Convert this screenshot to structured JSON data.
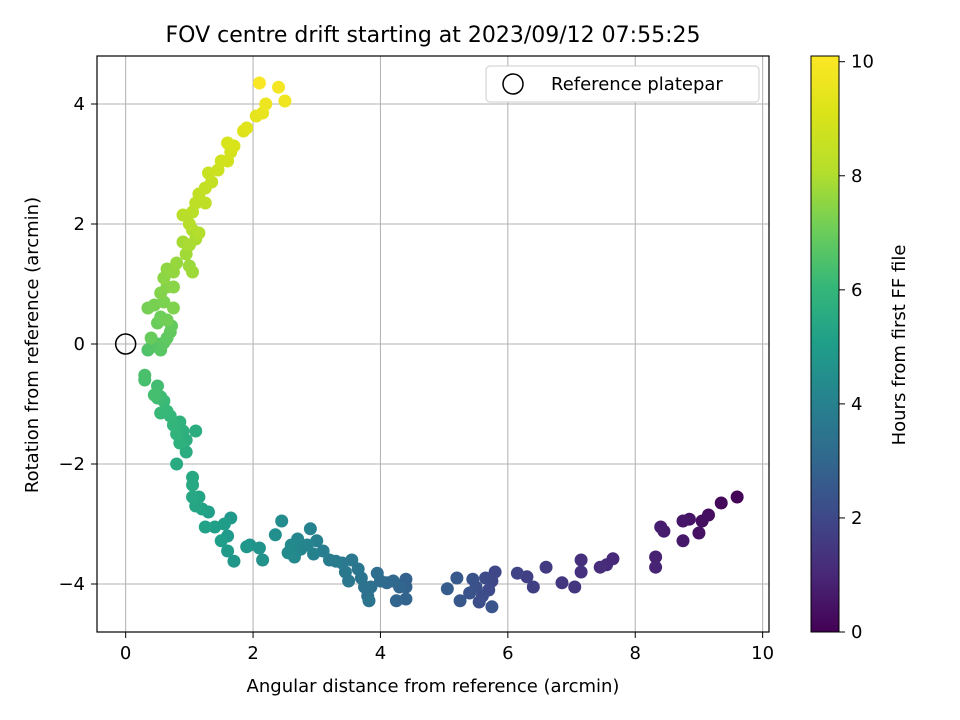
{
  "chart_data": {
    "type": "scatter",
    "title": "FOV centre drift starting at 2023/09/12 07:55:25",
    "xlabel": "Angular distance from reference (arcmin)",
    "ylabel": "Rotation from reference (arcmin)",
    "xlim": [
      -0.45,
      10.1
    ],
    "ylim": [
      -4.8,
      4.8
    ],
    "x_ticks": [
      "0",
      "2",
      "4",
      "6",
      "8",
      "10"
    ],
    "y_ticks": [
      "−4",
      "−2",
      "0",
      "2",
      "4"
    ],
    "x_tick_values": [
      0,
      2,
      4,
      6,
      8,
      10
    ],
    "y_tick_values": [
      -4,
      -2,
      0,
      2,
      4
    ],
    "grid": true,
    "legend": {
      "placement": "top-right",
      "entries": [
        {
          "label": "Reference platepar",
          "marker": "open-circle"
        }
      ]
    },
    "reference_point": {
      "x": 0,
      "y": 0
    },
    "colorbar": {
      "label": "Hours from first FF file",
      "colormap": "viridis",
      "range": [
        0,
        10.1
      ],
      "ticks": [
        "0",
        "2",
        "4",
        "6",
        "8",
        "10"
      ],
      "tick_values": [
        0,
        2,
        4,
        6,
        8,
        10
      ]
    },
    "points": [
      {
        "x": 9.6,
        "y": -2.55,
        "c": 0.1
      },
      {
        "x": 9.35,
        "y": -2.65,
        "c": 0.2
      },
      {
        "x": 9.15,
        "y": -2.85,
        "c": 0.3
      },
      {
        "x": 9.05,
        "y": -2.95,
        "c": 0.35
      },
      {
        "x": 9.0,
        "y": -3.15,
        "c": 0.45
      },
      {
        "x": 8.85,
        "y": -2.92,
        "c": 0.5
      },
      {
        "x": 8.75,
        "y": -2.95,
        "c": 0.55
      },
      {
        "x": 8.75,
        "y": -3.28,
        "c": 0.6
      },
      {
        "x": 8.45,
        "y": -3.12,
        "c": 0.7
      },
      {
        "x": 8.4,
        "y": -3.05,
        "c": 0.75
      },
      {
        "x": 8.32,
        "y": -3.55,
        "c": 0.85
      },
      {
        "x": 8.32,
        "y": -3.72,
        "c": 0.9
      },
      {
        "x": 7.65,
        "y": -3.58,
        "c": 1.05
      },
      {
        "x": 7.55,
        "y": -3.68,
        "c": 1.1
      },
      {
        "x": 7.45,
        "y": -3.72,
        "c": 1.15
      },
      {
        "x": 7.15,
        "y": -3.6,
        "c": 1.25
      },
      {
        "x": 7.15,
        "y": -3.8,
        "c": 1.3
      },
      {
        "x": 7.05,
        "y": -4.05,
        "c": 1.4
      },
      {
        "x": 6.85,
        "y": -3.98,
        "c": 1.5
      },
      {
        "x": 6.6,
        "y": -3.72,
        "c": 1.6
      },
      {
        "x": 6.4,
        "y": -4.05,
        "c": 1.7
      },
      {
        "x": 6.3,
        "y": -3.88,
        "c": 1.75
      },
      {
        "x": 6.15,
        "y": -3.82,
        "c": 1.85
      },
      {
        "x": 5.8,
        "y": -3.8,
        "c": 1.95
      },
      {
        "x": 5.75,
        "y": -3.95,
        "c": 2.0
      },
      {
        "x": 5.7,
        "y": -4.1,
        "c": 2.05
      },
      {
        "x": 5.65,
        "y": -3.9,
        "c": 2.1
      },
      {
        "x": 5.6,
        "y": -4.2,
        "c": 2.15
      },
      {
        "x": 5.55,
        "y": -4.3,
        "c": 2.2
      },
      {
        "x": 5.5,
        "y": -4.05,
        "c": 2.25
      },
      {
        "x": 5.45,
        "y": -3.92,
        "c": 2.3
      },
      {
        "x": 5.4,
        "y": -4.15,
        "c": 2.35
      },
      {
        "x": 5.75,
        "y": -4.38,
        "c": 2.4
      },
      {
        "x": 5.25,
        "y": -4.28,
        "c": 2.5
      },
      {
        "x": 5.2,
        "y": -3.9,
        "c": 2.55
      },
      {
        "x": 5.05,
        "y": -4.08,
        "c": 2.65
      },
      {
        "x": 4.4,
        "y": -3.92,
        "c": 2.8
      },
      {
        "x": 4.4,
        "y": -4.05,
        "c": 2.85
      },
      {
        "x": 4.4,
        "y": -4.25,
        "c": 2.9
      },
      {
        "x": 4.25,
        "y": -4.28,
        "c": 2.95
      },
      {
        "x": 4.3,
        "y": -4.05,
        "c": 3.0
      },
      {
        "x": 4.2,
        "y": -3.95,
        "c": 3.05
      },
      {
        "x": 4.1,
        "y": -3.98,
        "c": 3.1
      },
      {
        "x": 4.0,
        "y": -3.95,
        "c": 3.2
      },
      {
        "x": 3.95,
        "y": -3.82,
        "c": 3.25
      },
      {
        "x": 3.85,
        "y": -4.05,
        "c": 3.3
      },
      {
        "x": 3.8,
        "y": -4.2,
        "c": 3.35
      },
      {
        "x": 3.75,
        "y": -4.05,
        "c": 3.4
      },
      {
        "x": 3.82,
        "y": -4.28,
        "c": 3.45
      },
      {
        "x": 3.7,
        "y": -3.9,
        "c": 3.5
      },
      {
        "x": 3.65,
        "y": -3.75,
        "c": 3.55
      },
      {
        "x": 3.55,
        "y": -3.6,
        "c": 3.6
      },
      {
        "x": 3.5,
        "y": -3.95,
        "c": 3.62
      },
      {
        "x": 3.45,
        "y": -3.8,
        "c": 3.65
      },
      {
        "x": 3.4,
        "y": -3.65,
        "c": 3.7
      },
      {
        "x": 3.3,
        "y": -3.62,
        "c": 3.75
      },
      {
        "x": 3.2,
        "y": -3.6,
        "c": 3.8
      },
      {
        "x": 3.1,
        "y": -3.45,
        "c": 3.9
      },
      {
        "x": 3.0,
        "y": -3.28,
        "c": 3.95
      },
      {
        "x": 2.95,
        "y": -3.5,
        "c": 4.0
      },
      {
        "x": 2.9,
        "y": -3.08,
        "c": 4.05
      },
      {
        "x": 2.85,
        "y": -3.35,
        "c": 4.1
      },
      {
        "x": 2.75,
        "y": -3.42,
        "c": 4.15
      },
      {
        "x": 2.7,
        "y": -3.25,
        "c": 4.2
      },
      {
        "x": 2.65,
        "y": -3.55,
        "c": 4.25
      },
      {
        "x": 2.6,
        "y": -3.35,
        "c": 4.3
      },
      {
        "x": 2.55,
        "y": -3.48,
        "c": 4.35
      },
      {
        "x": 2.45,
        "y": -2.95,
        "c": 4.4
      },
      {
        "x": 2.35,
        "y": -3.18,
        "c": 4.5
      },
      {
        "x": 2.15,
        "y": -3.6,
        "c": 4.6
      },
      {
        "x": 2.1,
        "y": -3.4,
        "c": 4.65
      },
      {
        "x": 1.95,
        "y": -3.35,
        "c": 4.7
      },
      {
        "x": 1.9,
        "y": -3.38,
        "c": 4.75
      },
      {
        "x": 1.7,
        "y": -3.62,
        "c": 4.8
      },
      {
        "x": 1.65,
        "y": -2.9,
        "c": 4.85
      },
      {
        "x": 1.6,
        "y": -3.2,
        "c": 4.9
      },
      {
        "x": 1.6,
        "y": -3.45,
        "c": 4.95
      },
      {
        "x": 1.55,
        "y": -3.0,
        "c": 5.0
      },
      {
        "x": 1.5,
        "y": -3.28,
        "c": 5.05
      },
      {
        "x": 1.4,
        "y": -3.05,
        "c": 5.1
      },
      {
        "x": 1.3,
        "y": -2.8,
        "c": 5.15
      },
      {
        "x": 1.25,
        "y": -3.05,
        "c": 5.2
      },
      {
        "x": 1.2,
        "y": -2.75,
        "c": 5.25
      },
      {
        "x": 1.15,
        "y": -2.55,
        "c": 5.3
      },
      {
        "x": 1.1,
        "y": -2.7,
        "c": 5.35
      },
      {
        "x": 1.05,
        "y": -2.55,
        "c": 5.4
      },
      {
        "x": 1.05,
        "y": -2.35,
        "c": 5.45
      },
      {
        "x": 1.05,
        "y": -2.22,
        "c": 5.5
      },
      {
        "x": 0.8,
        "y": -2.0,
        "c": 5.55
      },
      {
        "x": 0.95,
        "y": -1.8,
        "c": 5.6
      },
      {
        "x": 1.1,
        "y": -1.45,
        "c": 5.65
      },
      {
        "x": 0.95,
        "y": -1.6,
        "c": 5.7
      },
      {
        "x": 0.9,
        "y": -1.45,
        "c": 5.75
      },
      {
        "x": 0.85,
        "y": -1.65,
        "c": 5.8
      },
      {
        "x": 0.85,
        "y": -1.3,
        "c": 5.85
      },
      {
        "x": 0.8,
        "y": -1.5,
        "c": 5.9
      },
      {
        "x": 0.75,
        "y": -1.35,
        "c": 5.95
      },
      {
        "x": 0.7,
        "y": -1.2,
        "c": 6.0
      },
      {
        "x": 0.65,
        "y": -1.12,
        "c": 6.05
      },
      {
        "x": 0.55,
        "y": -1.15,
        "c": 6.1
      },
      {
        "x": 0.6,
        "y": -0.95,
        "c": 6.15
      },
      {
        "x": 0.55,
        "y": -0.88,
        "c": 6.2
      },
      {
        "x": 0.5,
        "y": -0.9,
        "c": 6.25
      },
      {
        "x": 0.5,
        "y": -0.7,
        "c": 6.3
      },
      {
        "x": 0.45,
        "y": -0.85,
        "c": 6.35
      },
      {
        "x": 0.3,
        "y": -0.6,
        "c": 6.4
      },
      {
        "x": 0.3,
        "y": -0.52,
        "c": 6.45
      },
      {
        "x": 0.35,
        "y": -0.1,
        "c": 6.55
      },
      {
        "x": 0.4,
        "y": -0.05,
        "c": 6.6
      },
      {
        "x": 0.5,
        "y": 0.0,
        "c": 6.65
      },
      {
        "x": 0.55,
        "y": -0.1,
        "c": 6.7
      },
      {
        "x": 0.6,
        "y": 0.02,
        "c": 6.75
      },
      {
        "x": 0.65,
        "y": 0.1,
        "c": 6.8
      },
      {
        "x": 0.7,
        "y": 0.2,
        "c": 6.85
      },
      {
        "x": 0.72,
        "y": 0.3,
        "c": 6.9
      },
      {
        "x": 0.4,
        "y": 0.1,
        "c": 6.95
      },
      {
        "x": 0.5,
        "y": 0.35,
        "c": 7.0
      },
      {
        "x": 0.55,
        "y": 0.45,
        "c": 7.05
      },
      {
        "x": 0.65,
        "y": 0.4,
        "c": 7.1
      },
      {
        "x": 0.35,
        "y": 0.6,
        "c": 7.15
      },
      {
        "x": 0.45,
        "y": 0.65,
        "c": 7.2
      },
      {
        "x": 0.6,
        "y": 0.7,
        "c": 7.25
      },
      {
        "x": 0.75,
        "y": 0.6,
        "c": 7.3
      },
      {
        "x": 0.55,
        "y": 0.85,
        "c": 7.35
      },
      {
        "x": 0.65,
        "y": 0.95,
        "c": 7.4
      },
      {
        "x": 0.75,
        "y": 0.95,
        "c": 7.45
      },
      {
        "x": 0.6,
        "y": 1.1,
        "c": 7.5
      },
      {
        "x": 0.65,
        "y": 1.25,
        "c": 7.55
      },
      {
        "x": 0.75,
        "y": 1.2,
        "c": 7.6
      },
      {
        "x": 0.8,
        "y": 1.35,
        "c": 7.65
      },
      {
        "x": 1.0,
        "y": 1.3,
        "c": 7.7
      },
      {
        "x": 1.05,
        "y": 1.2,
        "c": 7.75
      },
      {
        "x": 0.95,
        "y": 1.5,
        "c": 7.8
      },
      {
        "x": 0.9,
        "y": 1.7,
        "c": 7.85
      },
      {
        "x": 1.0,
        "y": 1.65,
        "c": 7.9
      },
      {
        "x": 1.1,
        "y": 1.75,
        "c": 7.95
      },
      {
        "x": 1.05,
        "y": 1.9,
        "c": 8.0
      },
      {
        "x": 1.15,
        "y": 1.85,
        "c": 8.05
      },
      {
        "x": 1.0,
        "y": 2.0,
        "c": 8.1
      },
      {
        "x": 0.9,
        "y": 2.15,
        "c": 8.15
      },
      {
        "x": 1.05,
        "y": 2.2,
        "c": 8.2
      },
      {
        "x": 1.1,
        "y": 2.35,
        "c": 8.3
      },
      {
        "x": 1.25,
        "y": 2.35,
        "c": 8.35
      },
      {
        "x": 1.15,
        "y": 2.5,
        "c": 8.4
      },
      {
        "x": 1.25,
        "y": 2.6,
        "c": 8.45
      },
      {
        "x": 1.35,
        "y": 2.7,
        "c": 8.5
      },
      {
        "x": 1.3,
        "y": 2.85,
        "c": 8.6
      },
      {
        "x": 1.45,
        "y": 2.9,
        "c": 8.7
      },
      {
        "x": 1.5,
        "y": 3.05,
        "c": 8.8
      },
      {
        "x": 1.6,
        "y": 3.05,
        "c": 8.85
      },
      {
        "x": 1.65,
        "y": 3.2,
        "c": 8.9
      },
      {
        "x": 1.6,
        "y": 3.35,
        "c": 9.0
      },
      {
        "x": 1.7,
        "y": 3.3,
        "c": 9.05
      },
      {
        "x": 1.85,
        "y": 3.55,
        "c": 9.15
      },
      {
        "x": 1.9,
        "y": 3.6,
        "c": 9.25
      },
      {
        "x": 2.05,
        "y": 3.8,
        "c": 9.4
      },
      {
        "x": 2.15,
        "y": 3.85,
        "c": 9.5
      },
      {
        "x": 2.2,
        "y": 4.0,
        "c": 9.6
      },
      {
        "x": 2.5,
        "y": 4.05,
        "c": 9.7
      },
      {
        "x": 2.4,
        "y": 4.28,
        "c": 9.85
      },
      {
        "x": 2.1,
        "y": 4.35,
        "c": 10.0
      }
    ]
  }
}
